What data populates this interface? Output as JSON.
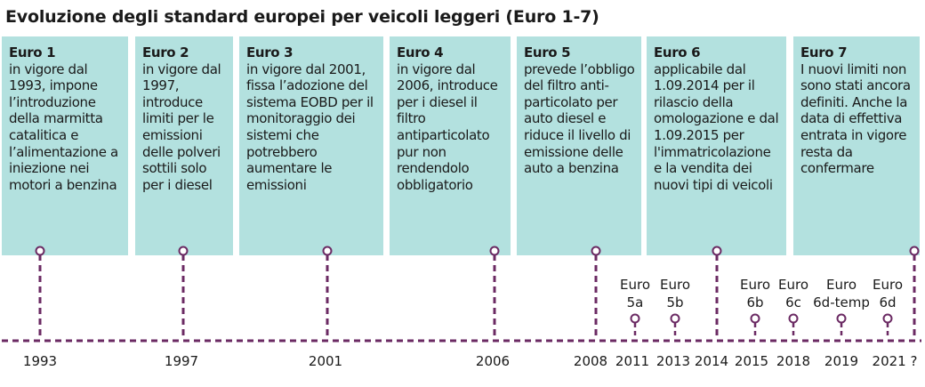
{
  "title": "Evoluzione degli standard europei per veicoli leggeri (Euro 1-7)",
  "colors": {
    "card_bg": "#b3e1df",
    "timeline": "#6b2a63"
  },
  "cards": [
    {
      "heading": "Euro 1",
      "body": "in vigore dal 1993, impone l’introduzione della marmitta catalitica e l’alimentazione a iniezione nei motori a benzina"
    },
    {
      "heading": "Euro 2",
      "body": "in vigore dal 1997, introduce limiti per le emissioni delle polveri sottili solo per i diesel"
    },
    {
      "heading": "Euro 3",
      "body": "in vigore dal 2001, fissa l’adozione del sistema EOBD per il monitoraggio dei sistemi che potrebbero aumentare le emissioni"
    },
    {
      "heading": "Euro 4",
      "body": "in vigore dal 2006, introduce per i diesel il filtro antiparticolato pur non rendendolo obbligatorio"
    },
    {
      "heading": "Euro 5",
      "body": "prevede l’obbligo del filtro anti-particolato per auto diesel e riduce il livello di emissione delle auto a benzina"
    },
    {
      "heading": "Euro 6",
      "body": "applicabile dal 1.09.2014 per il rilascio della omologazione e dal 1.09.2015 per l'immatricolazione e la vendita dei nuovi tipi di veicoli"
    },
    {
      "heading": "Euro 7",
      "body": "I nuovi limiti non sono stati ancora definiti. Anche la data di effettiva entrata in vigore resta da confermare"
    }
  ],
  "sub_standards": [
    {
      "line1": "Euro",
      "line2": "5a"
    },
    {
      "line1": "Euro",
      "line2": "5b"
    },
    {
      "line1": "Euro",
      "line2": "6b"
    },
    {
      "line1": "Euro",
      "line2": "6c"
    },
    {
      "line1": "Euro",
      "line2": "6d-temp"
    },
    {
      "line1": "Euro",
      "line2": "6d"
    }
  ],
  "years": [
    "1993",
    "1997",
    "2001",
    "2006",
    "2008",
    "2011",
    "2013",
    "2014",
    "2015",
    "2018",
    "2019",
    "2021 ?"
  ]
}
